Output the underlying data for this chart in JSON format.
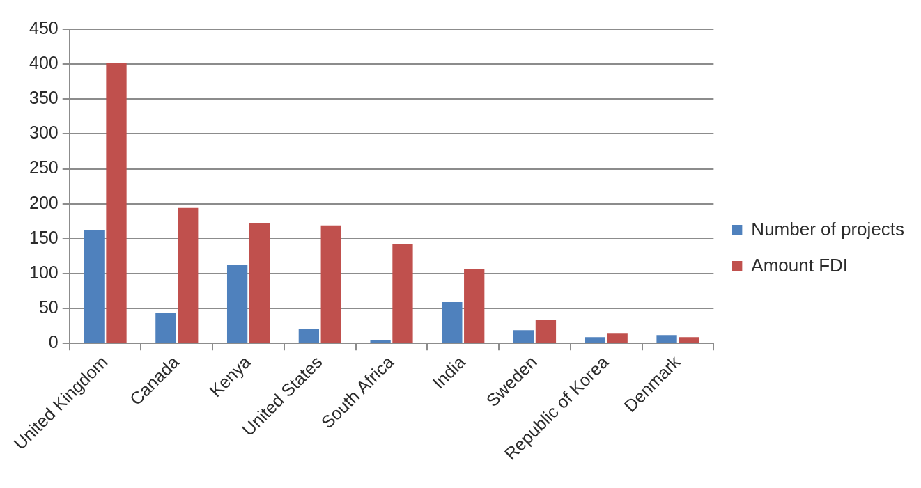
{
  "chart_data": {
    "type": "bar",
    "categories": [
      "United Kingdom",
      "Canada",
      "Kenya",
      "United States",
      "South Africa",
      "India",
      "Sweden",
      "Republic of Korea",
      "Denmark"
    ],
    "series": [
      {
        "name": "Number of projects",
        "color": "#4f81bd",
        "values": [
          162,
          44,
          112,
          21,
          5,
          59,
          19,
          9,
          12
        ]
      },
      {
        "name": "Amount FDI",
        "color": "#c0504d",
        "values": [
          402,
          194,
          172,
          169,
          142,
          106,
          34,
          14,
          9
        ]
      }
    ],
    "ylim": [
      0,
      450
    ],
    "yticks": [
      0,
      50,
      100,
      150,
      200,
      250,
      300,
      350,
      400,
      450
    ],
    "grid": "y",
    "legend": "right"
  }
}
